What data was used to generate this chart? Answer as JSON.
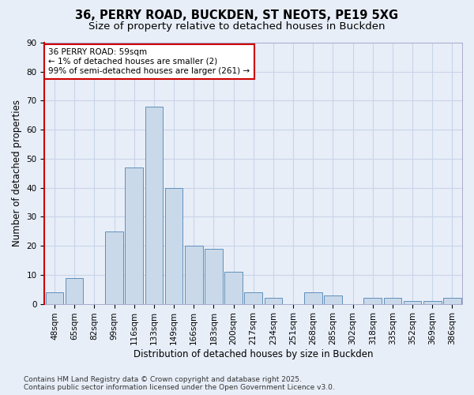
{
  "title_line1": "36, PERRY ROAD, BUCKDEN, ST NEOTS, PE19 5XG",
  "title_line2": "Size of property relative to detached houses in Buckden",
  "xlabel": "Distribution of detached houses by size in Buckden",
  "ylabel": "Number of detached properties",
  "categories": [
    "48sqm",
    "65sqm",
    "82sqm",
    "99sqm",
    "116sqm",
    "133sqm",
    "149sqm",
    "166sqm",
    "183sqm",
    "200sqm",
    "217sqm",
    "234sqm",
    "251sqm",
    "268sqm",
    "285sqm",
    "302sqm",
    "318sqm",
    "335sqm",
    "352sqm",
    "369sqm",
    "386sqm"
  ],
  "values": [
    4,
    9,
    0,
    25,
    47,
    68,
    40,
    20,
    19,
    11,
    4,
    2,
    0,
    4,
    3,
    0,
    2,
    2,
    1,
    1,
    2
  ],
  "bar_color": "#c9d9ea",
  "bar_edge_color": "#6090bb",
  "grid_color": "#c8d4e8",
  "background_color": "#e8eef8",
  "annotation_box_color": "#ffffff",
  "annotation_box_edge": "#cc0000",
  "annotation_line_color": "#cc0000",
  "annotation_text_line1": "36 PERRY ROAD: 59sqm",
  "annotation_text_line2": "← 1% of detached houses are smaller (2)",
  "annotation_text_line3": "99% of semi-detached houses are larger (261) →",
  "ylim": [
    0,
    90
  ],
  "yticks": [
    0,
    10,
    20,
    30,
    40,
    50,
    60,
    70,
    80,
    90
  ],
  "footer_line1": "Contains HM Land Registry data © Crown copyright and database right 2025.",
  "footer_line2": "Contains public sector information licensed under the Open Government Licence v3.0.",
  "title_fontsize": 10.5,
  "subtitle_fontsize": 9.5,
  "axis_label_fontsize": 8.5,
  "tick_fontsize": 7.5,
  "annotation_fontsize": 7.5,
  "footer_fontsize": 6.5
}
